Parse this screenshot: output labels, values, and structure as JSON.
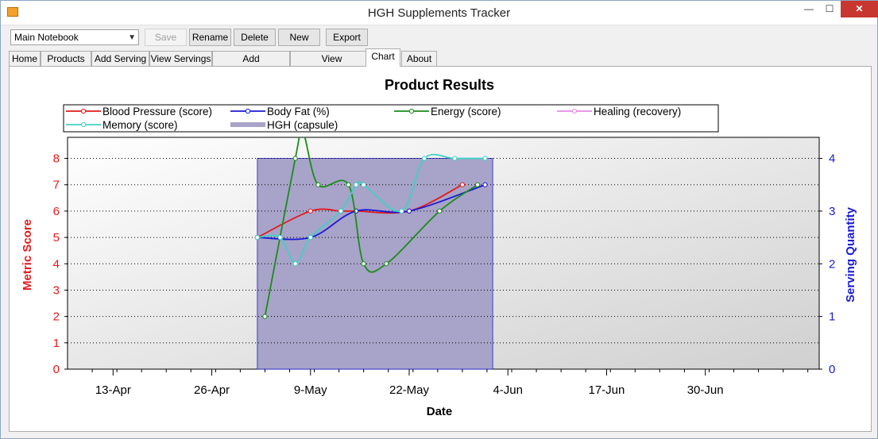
{
  "window": {
    "title": "HGH Supplements Tracker",
    "min_glyph": "—",
    "max_glyph": "☐",
    "close_glyph": "✕"
  },
  "toolbar": {
    "notebook_value": "Main Notebook",
    "save_label": "Save",
    "rename_label": "Rename",
    "delete_label": "Delete",
    "new_label": "New",
    "export_label": "Export"
  },
  "tabs": [
    {
      "label": "Home"
    },
    {
      "label": "Products"
    },
    {
      "label": "Add Serving"
    },
    {
      "label": "View Servings"
    },
    {
      "label": "Add Measurement"
    },
    {
      "label": "View Measurements"
    },
    {
      "label": "Chart"
    },
    {
      "label": "About"
    }
  ],
  "chart_data": {
    "type": "line",
    "title": "Product Results",
    "xlabel": "Date",
    "ylabel_left": "Metric Score",
    "ylabel_right": "Serving Quantity",
    "x_range": [
      "2012-04-07",
      "2012-07-15"
    ],
    "ylim_left": [
      0,
      8.8
    ],
    "ylim_right": [
      0,
      4.4
    ],
    "x_ticks": [
      {
        "label": "13-Apr",
        "date": "2012-04-13"
      },
      {
        "label": "26-Apr",
        "date": "2012-04-26"
      },
      {
        "label": "9-May",
        "date": "2012-05-09"
      },
      {
        "label": "22-May",
        "date": "2012-05-22"
      },
      {
        "label": "4-Jun",
        "date": "2012-06-04"
      },
      {
        "label": "17-Jun",
        "date": "2012-06-17"
      },
      {
        "label": "30-Jun",
        "date": "2012-06-30"
      }
    ],
    "y_ticks_left": [
      0,
      1,
      2,
      3,
      4,
      5,
      6,
      7,
      8
    ],
    "y_ticks_right": [
      0,
      1,
      2,
      3,
      4
    ],
    "grid": true,
    "legend_position": "top",
    "colors": {
      "left_axis": "#e31a1c",
      "right_axis": "#1a1ad6",
      "plot_bg_start": "#ffffff",
      "plot_bg_end": "#d0d0d0",
      "bar_fill": "#a8a3c8"
    },
    "bars": [
      {
        "name": "HGH (capsule)",
        "x_start": "2012-05-02",
        "x_end": "2012-06-02",
        "value": 4,
        "axis": "right"
      }
    ],
    "series": [
      {
        "name": "Blood Pressure (score)",
        "color": "#e31a1c",
        "axis": "left",
        "points": [
          {
            "x": "2012-05-02",
            "y": 5
          },
          {
            "x": "2012-05-09",
            "y": 6
          },
          {
            "x": "2012-05-13",
            "y": 6
          },
          {
            "x": "2012-05-15",
            "y": 6
          },
          {
            "x": "2012-05-22",
            "y": 6
          },
          {
            "x": "2012-05-29",
            "y": 7
          }
        ]
      },
      {
        "name": "Body Fat (%)",
        "color": "#1a1ad6",
        "axis": "left",
        "points": [
          {
            "x": "2012-05-02",
            "y": 5
          },
          {
            "x": "2012-05-09",
            "y": 5
          },
          {
            "x": "2012-05-15",
            "y": 6
          },
          {
            "x": "2012-05-22",
            "y": 6
          },
          {
            "x": "2012-06-01",
            "y": 7
          }
        ]
      },
      {
        "name": "Energy (score)",
        "color": "#1a8c1a",
        "axis": "left",
        "points": [
          {
            "x": "2012-05-03",
            "y": 2
          },
          {
            "x": "2012-05-07",
            "y": 8
          },
          {
            "x": "2012-05-08",
            "y": 9
          },
          {
            "x": "2012-05-10",
            "y": 7
          },
          {
            "x": "2012-05-14",
            "y": 7
          },
          {
            "x": "2012-05-16",
            "y": 4
          },
          {
            "x": "2012-05-19",
            "y": 4
          },
          {
            "x": "2012-05-26",
            "y": 6
          },
          {
            "x": "2012-05-31",
            "y": 7
          }
        ]
      },
      {
        "name": "Healing (recovery)",
        "color": "#e68ae6",
        "axis": "left",
        "points": []
      },
      {
        "name": "Memory (score)",
        "color": "#40d0c8",
        "axis": "left",
        "points": [
          {
            "x": "2012-05-02",
            "y": 5
          },
          {
            "x": "2012-05-05",
            "y": 5
          },
          {
            "x": "2012-05-07",
            "y": 4
          },
          {
            "x": "2012-05-09",
            "y": 5
          },
          {
            "x": "2012-05-13",
            "y": 6
          },
          {
            "x": "2012-05-15",
            "y": 7
          },
          {
            "x": "2012-05-16",
            "y": 7
          },
          {
            "x": "2012-05-21",
            "y": 6
          },
          {
            "x": "2012-05-24",
            "y": 8
          },
          {
            "x": "2012-05-28",
            "y": 8
          },
          {
            "x": "2012-06-01",
            "y": 8
          }
        ]
      }
    ]
  }
}
